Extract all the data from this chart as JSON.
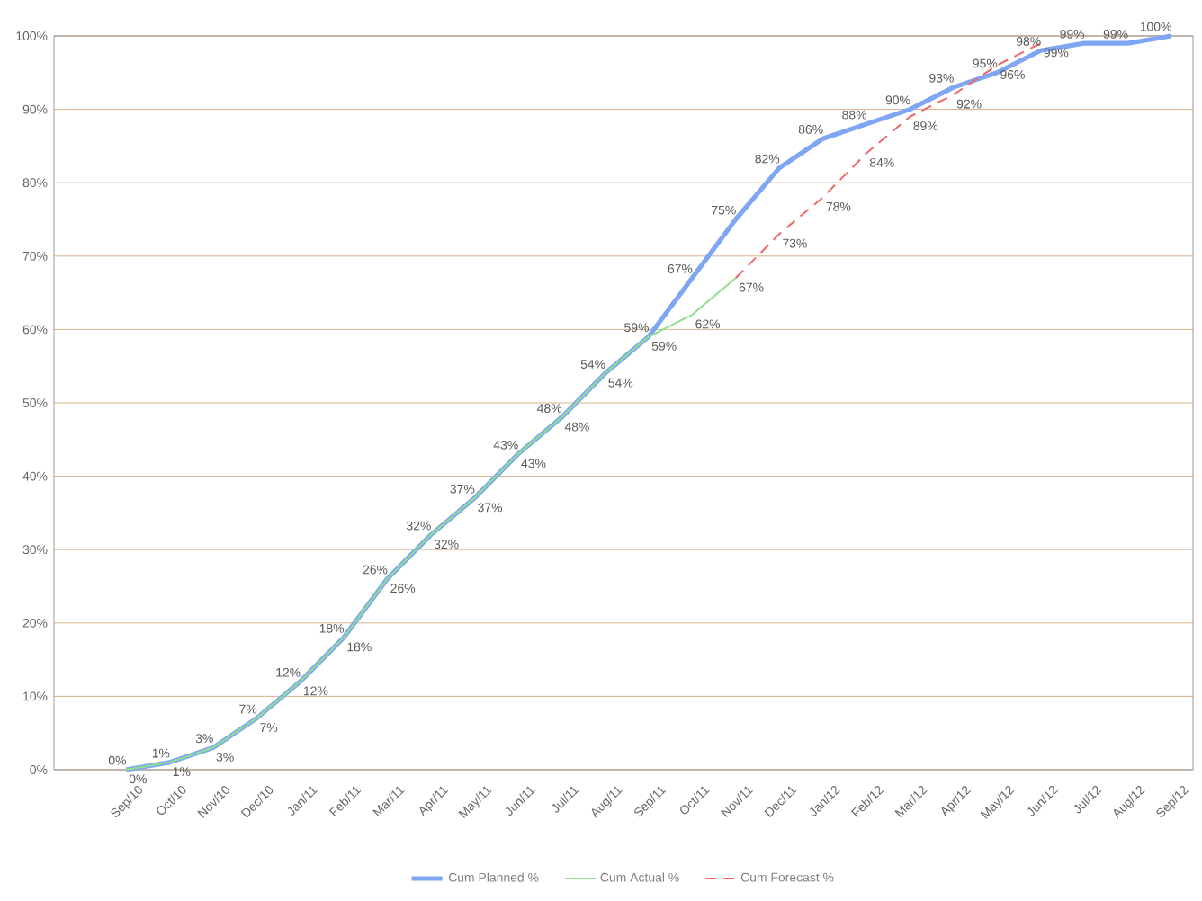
{
  "chart_data": {
    "type": "line",
    "categories": [
      "Sep/10",
      "Oct/10",
      "Nov/10",
      "Dec/10",
      "Jan/11",
      "Feb/11",
      "Mar/11",
      "Apr/11",
      "May/11",
      "Jun/11",
      "Jul/11",
      "Aug/11",
      "Sep/11",
      "Oct/11",
      "Nov/11",
      "Dec/11",
      "Jan/12",
      "Feb/12",
      "Mar/12",
      "Apr/12",
      "May/12",
      "Jun/12",
      "Jul/12",
      "Aug/12",
      "Sep/12"
    ],
    "series": [
      {
        "name": "Cum Planned %",
        "color": "#7fa6f2",
        "line_style": "solid",
        "values": [
          0,
          1,
          3,
          7,
          12,
          18,
          26,
          32,
          37,
          43,
          48,
          54,
          59,
          67,
          75,
          82,
          86,
          88,
          90,
          93,
          95,
          98,
          99,
          99,
          100
        ],
        "value_labels": [
          "0%",
          "1%",
          "3%",
          "7%",
          "12%",
          "18%",
          "26%",
          "32%",
          "37%",
          "43%",
          "48%",
          "54%",
          "59%",
          "67%",
          "75%",
          "82%",
          "86%",
          "88%",
          "90%",
          "93%",
          "95%",
          "98%",
          "99%",
          "99%",
          "100%"
        ]
      },
      {
        "name": "Cum Actual %",
        "color": "#8fe08a",
        "line_style": "solid",
        "values": [
          0,
          1,
          3,
          7,
          12,
          18,
          26,
          32,
          37,
          43,
          48,
          54,
          59,
          62,
          67,
          null,
          null,
          null,
          null,
          null,
          null,
          null,
          null,
          null,
          null
        ],
        "value_labels": [
          "0%",
          "1%",
          "3%",
          "7%",
          "12%",
          "18%",
          "26%",
          "32%",
          "37%",
          "43%",
          "48%",
          "54%",
          "59%",
          "62%",
          "67%",
          null,
          null,
          null,
          null,
          null,
          null,
          null,
          null,
          null,
          null
        ]
      },
      {
        "name": "Cum Forecast %",
        "color": "#f06868",
        "line_style": "dashed",
        "values": [
          null,
          null,
          null,
          null,
          null,
          null,
          null,
          null,
          null,
          null,
          null,
          null,
          null,
          null,
          67,
          73,
          78,
          84,
          89,
          92,
          96,
          99,
          null,
          null,
          null
        ],
        "value_labels": [
          null,
          null,
          null,
          null,
          null,
          null,
          null,
          null,
          null,
          null,
          null,
          null,
          null,
          null,
          null,
          "73%",
          "78%",
          "84%",
          "89%",
          "92%",
          "96%",
          "99%",
          null,
          null,
          null
        ]
      }
    ],
    "ylim": [
      0,
      100
    ],
    "yticks": [
      {
        "value": 0,
        "label": "0%"
      },
      {
        "value": 10,
        "label": "10%"
      },
      {
        "value": 20,
        "label": "20%"
      },
      {
        "value": 30,
        "label": "30%"
      },
      {
        "value": 40,
        "label": "40%"
      },
      {
        "value": 50,
        "label": "50%"
      },
      {
        "value": 60,
        "label": "60%"
      },
      {
        "value": 70,
        "label": "70%"
      },
      {
        "value": 80,
        "label": "80%"
      },
      {
        "value": 90,
        "label": "90%"
      },
      {
        "value": 100,
        "label": "100%"
      }
    ],
    "grid": "y",
    "legend": "bottom",
    "marker": "none"
  }
}
